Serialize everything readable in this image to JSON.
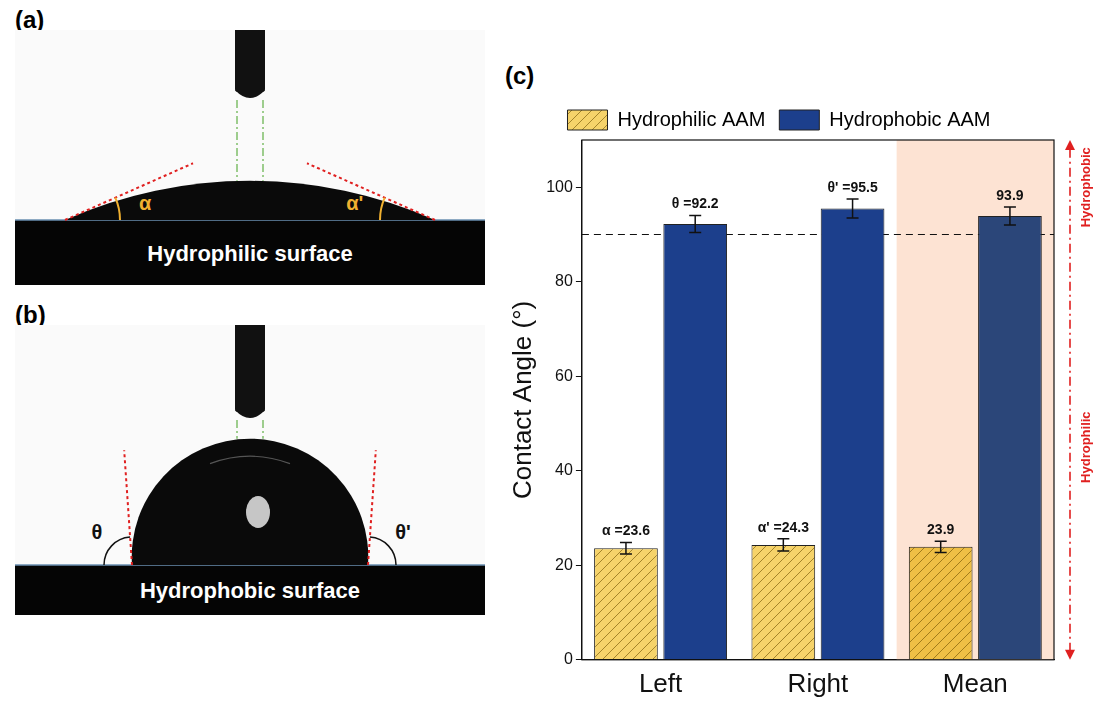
{
  "panels": [
    {
      "letter": "(a)",
      "surface_label": "Hydrophilic surface",
      "angle_labels": [
        "α",
        "α'"
      ]
    },
    {
      "letter": "(b)",
      "surface_label": "Hydrophobic surface",
      "angle_labels": [
        "θ",
        "θ'"
      ]
    }
  ],
  "chart_data": {
    "type": "bar",
    "letter": "(c)",
    "y_label": "Contact Angle (°)",
    "categories": [
      "Left",
      "Right",
      "Mean"
    ],
    "series": [
      {
        "name": "Hydrophilic AAM",
        "color": "#f6d36a",
        "colors": [
          "#f6d36a",
          "#f6d36a",
          "#efbf45"
        ],
        "values": [
          23.6,
          24.3,
          23.9
        ],
        "errors": [
          1.2,
          1.3,
          1.2
        ],
        "value_labels": [
          "α =23.6",
          "α' =24.3",
          "23.9"
        ]
      },
      {
        "name": "Hydrophobic AAM",
        "color": "#1c3f8c",
        "colors": [
          "#1c3f8c",
          "#1c3f8c",
          "#2b4679"
        ],
        "values": [
          92.2,
          95.5,
          93.9
        ],
        "errors": [
          1.8,
          2.0,
          1.9
        ],
        "value_labels": [
          "θ =92.2",
          "θ' =95.5",
          "93.9"
        ]
      }
    ],
    "ylim": [
      0,
      110
    ],
    "yticks": [
      0,
      20,
      40,
      60,
      80,
      100
    ],
    "grid": false,
    "legend": "top",
    "data_labels": true,
    "reference_line": 90,
    "highlight_category": "Mean",
    "regions": [
      {
        "label": "Hydrophobic",
        "range": [
          90,
          110
        ]
      },
      {
        "label": "Hydrophilic",
        "range": [
          0,
          90
        ]
      }
    ]
  }
}
